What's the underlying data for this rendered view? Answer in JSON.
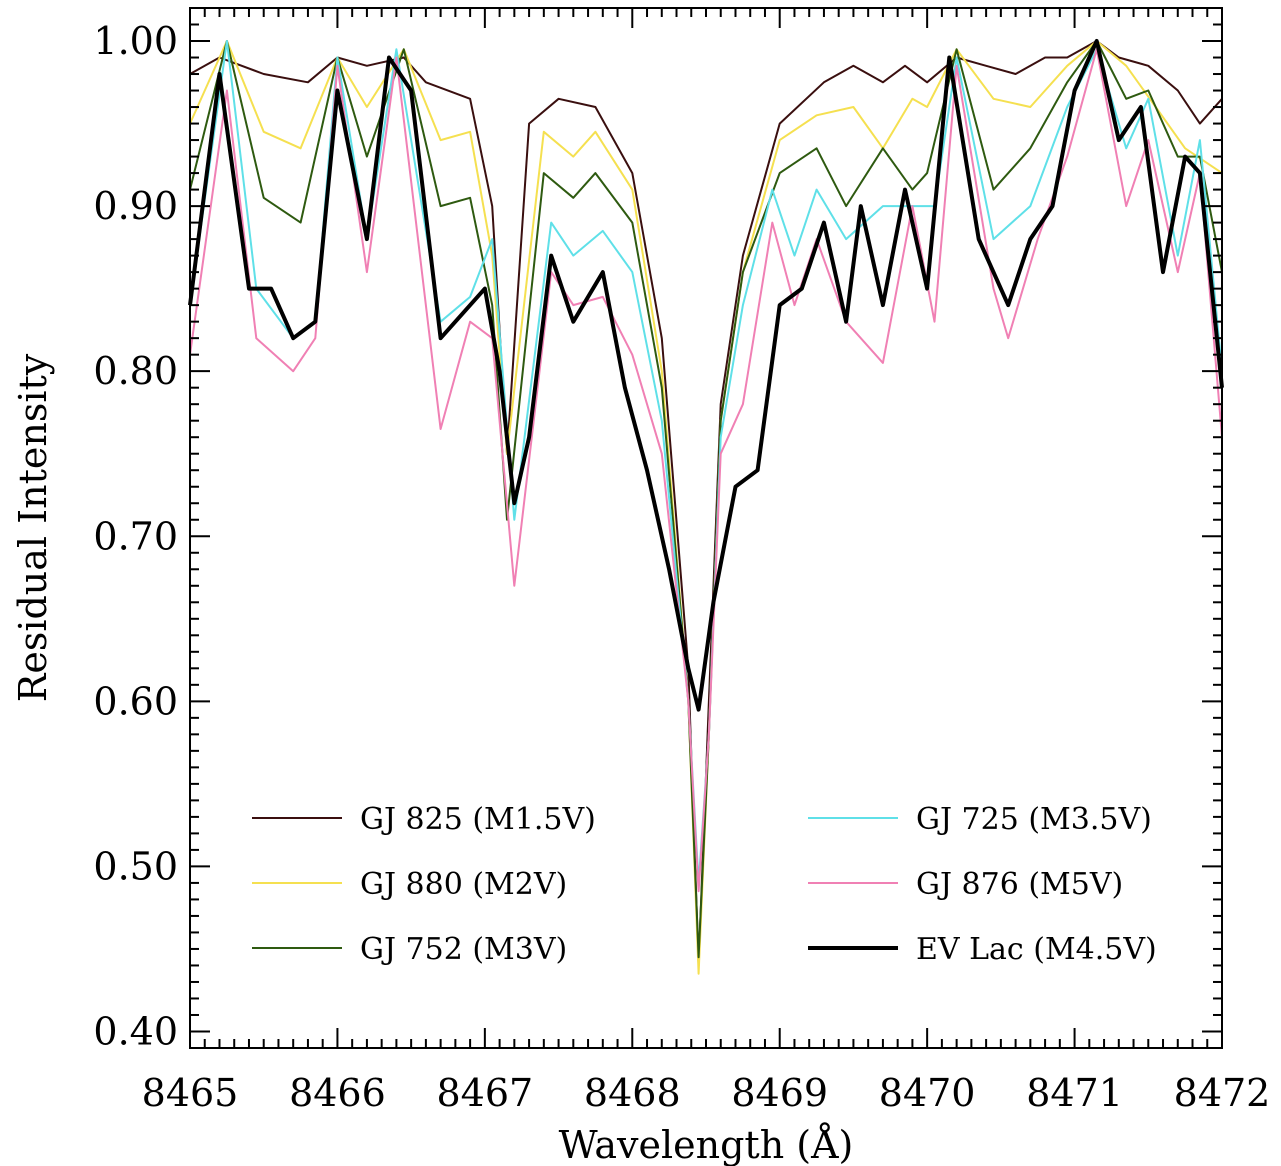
{
  "chart_data": {
    "type": "line",
    "title": "",
    "xlabel": "Wavelength  (Å)",
    "ylabel": "Residual Intensity",
    "xlim": [
      8465,
      8472
    ],
    "ylim": [
      0.39,
      1.02
    ],
    "xticks": [
      8465,
      8466,
      8467,
      8468,
      8469,
      8470,
      8471,
      8472
    ],
    "xtick_labels": [
      "8465",
      "8466",
      "8467",
      "8468",
      "8469",
      "8470",
      "8471",
      "8472"
    ],
    "yticks": [
      0.4,
      0.5,
      0.6,
      0.7,
      0.8,
      0.9,
      1.0
    ],
    "ytick_labels": [
      "0.40",
      "0.50",
      "0.60",
      "0.70",
      "0.80",
      "0.90",
      "1.00"
    ],
    "grid": false,
    "legend_position": "bottom",
    "series": [
      {
        "name": "GJ 825 (M1.5V)",
        "color": "#3a0f0f",
        "x": [
          8465.0,
          8465.2,
          8465.5,
          8465.8,
          8466.0,
          8466.2,
          8466.45,
          8466.6,
          8466.9,
          8467.05,
          8467.15,
          8467.3,
          8467.5,
          8467.75,
          8468.0,
          8468.2,
          8468.38,
          8468.45,
          8468.52,
          8468.6,
          8468.75,
          8469.0,
          8469.3,
          8469.5,
          8469.7,
          8469.85,
          8470.0,
          8470.2,
          8470.4,
          8470.6,
          8470.8,
          8470.95,
          8471.15,
          8471.3,
          8471.5,
          8471.7,
          8471.85,
          8472.0
        ],
        "y": [
          0.98,
          0.99,
          0.98,
          0.975,
          0.99,
          0.985,
          0.99,
          0.975,
          0.965,
          0.9,
          0.75,
          0.95,
          0.965,
          0.96,
          0.92,
          0.82,
          0.62,
          0.44,
          0.6,
          0.78,
          0.87,
          0.95,
          0.975,
          0.985,
          0.975,
          0.985,
          0.975,
          0.99,
          0.985,
          0.98,
          0.99,
          0.99,
          1.0,
          0.99,
          0.985,
          0.97,
          0.95,
          0.965
        ]
      },
      {
        "name": "GJ 880 (M2V)",
        "color": "#f5e050",
        "x": [
          8465.0,
          8465.25,
          8465.5,
          8465.75,
          8466.0,
          8466.2,
          8466.45,
          8466.7,
          8466.9,
          8467.05,
          8467.15,
          8467.4,
          8467.6,
          8467.75,
          8468.0,
          8468.2,
          8468.38,
          8468.45,
          8468.52,
          8468.6,
          8468.75,
          8469.0,
          8469.25,
          8469.5,
          8469.7,
          8469.9,
          8470.0,
          8470.2,
          8470.45,
          8470.7,
          8470.95,
          8471.15,
          8471.35,
          8471.55,
          8471.75,
          8472.0
        ],
        "y": [
          0.95,
          1.0,
          0.945,
          0.935,
          0.99,
          0.96,
          0.995,
          0.94,
          0.945,
          0.87,
          0.75,
          0.945,
          0.93,
          0.945,
          0.91,
          0.8,
          0.6,
          0.435,
          0.58,
          0.77,
          0.86,
          0.94,
          0.955,
          0.96,
          0.935,
          0.965,
          0.96,
          0.995,
          0.965,
          0.96,
          0.985,
          1.0,
          0.985,
          0.96,
          0.935,
          0.92
        ]
      },
      {
        "name": "GJ 752 (M3V)",
        "color": "#2e5a10",
        "x": [
          8465.0,
          8465.25,
          8465.5,
          8465.75,
          8466.0,
          8466.2,
          8466.45,
          8466.7,
          8466.9,
          8467.05,
          8467.15,
          8467.4,
          8467.6,
          8467.75,
          8468.0,
          8468.2,
          8468.38,
          8468.45,
          8468.52,
          8468.6,
          8468.75,
          8469.0,
          8469.25,
          8469.45,
          8469.7,
          8469.9,
          8470.0,
          8470.2,
          8470.45,
          8470.7,
          8470.95,
          8471.15,
          8471.35,
          8471.5,
          8471.7,
          8471.85,
          8472.0
        ],
        "y": [
          0.91,
          1.0,
          0.905,
          0.89,
          0.99,
          0.93,
          0.995,
          0.9,
          0.905,
          0.84,
          0.71,
          0.92,
          0.905,
          0.92,
          0.89,
          0.79,
          0.6,
          0.445,
          0.58,
          0.77,
          0.86,
          0.92,
          0.935,
          0.9,
          0.935,
          0.91,
          0.92,
          0.995,
          0.91,
          0.935,
          0.975,
          1.0,
          0.965,
          0.97,
          0.93,
          0.93,
          0.86
        ]
      },
      {
        "name": "GJ 725 (M3.5V)",
        "color": "#5fe0e8",
        "x": [
          8465.0,
          8465.25,
          8465.45,
          8465.7,
          8465.85,
          8466.0,
          8466.2,
          8466.4,
          8466.7,
          8466.9,
          8467.05,
          8467.2,
          8467.45,
          8467.6,
          8467.8,
          8468.0,
          8468.2,
          8468.38,
          8468.45,
          8468.52,
          8468.6,
          8468.75,
          8468.95,
          8469.1,
          8469.25,
          8469.45,
          8469.7,
          8469.9,
          8470.05,
          8470.2,
          8470.45,
          8470.7,
          8470.95,
          8471.15,
          8471.35,
          8471.5,
          8471.7,
          8471.85,
          8472.0
        ],
        "y": [
          0.84,
          1.0,
          0.85,
          0.82,
          0.83,
          0.99,
          0.88,
          0.995,
          0.83,
          0.845,
          0.88,
          0.71,
          0.89,
          0.87,
          0.885,
          0.86,
          0.77,
          0.6,
          0.49,
          0.58,
          0.76,
          0.84,
          0.91,
          0.87,
          0.91,
          0.88,
          0.9,
          0.9,
          0.9,
          0.99,
          0.88,
          0.9,
          0.96,
          0.995,
          0.935,
          0.965,
          0.87,
          0.94,
          0.8
        ]
      },
      {
        "name": "GJ 876 (M5V)",
        "color": "#f080b4",
        "x": [
          8465.0,
          8465.25,
          8465.45,
          8465.7,
          8465.85,
          8466.0,
          8466.2,
          8466.4,
          8466.7,
          8466.9,
          8467.05,
          8467.2,
          8467.45,
          8467.6,
          8467.8,
          8468.0,
          8468.2,
          8468.38,
          8468.45,
          8468.52,
          8468.6,
          8468.75,
          8468.95,
          8469.1,
          8469.25,
          8469.45,
          8469.7,
          8469.9,
          8470.05,
          8470.2,
          8470.45,
          8470.55,
          8470.75,
          8470.95,
          8471.15,
          8471.35,
          8471.5,
          8471.7,
          8471.85,
          8472.0
        ],
        "y": [
          0.81,
          0.97,
          0.82,
          0.8,
          0.82,
          0.985,
          0.86,
          0.99,
          0.765,
          0.83,
          0.82,
          0.67,
          0.86,
          0.84,
          0.845,
          0.81,
          0.75,
          0.6,
          0.485,
          0.58,
          0.75,
          0.78,
          0.89,
          0.84,
          0.88,
          0.83,
          0.805,
          0.9,
          0.83,
          0.985,
          0.85,
          0.82,
          0.88,
          0.93,
          0.995,
          0.9,
          0.94,
          0.86,
          0.92,
          0.76
        ]
      },
      {
        "name": "EV Lac (M4.5V)",
        "color": "#000000",
        "x": [
          8465.0,
          8465.2,
          8465.4,
          8465.55,
          8465.7,
          8465.85,
          8466.0,
          8466.2,
          8466.35,
          8466.5,
          8466.7,
          8466.85,
          8467.0,
          8467.1,
          8467.2,
          8467.3,
          8467.45,
          8467.6,
          8467.8,
          8467.95,
          8468.1,
          8468.25,
          8468.38,
          8468.45,
          8468.55,
          8468.7,
          8468.85,
          8469.0,
          8469.15,
          8469.3,
          8469.45,
          8469.55,
          8469.7,
          8469.85,
          8470.0,
          8470.15,
          8470.35,
          8470.55,
          8470.7,
          8470.85,
          8471.0,
          8471.15,
          8471.3,
          8471.45,
          8471.6,
          8471.75,
          8471.85,
          8472.0
        ],
        "y": [
          0.84,
          0.98,
          0.85,
          0.85,
          0.82,
          0.83,
          0.97,
          0.88,
          0.99,
          0.97,
          0.82,
          0.835,
          0.85,
          0.8,
          0.72,
          0.76,
          0.87,
          0.83,
          0.86,
          0.79,
          0.74,
          0.68,
          0.62,
          0.595,
          0.66,
          0.73,
          0.74,
          0.84,
          0.85,
          0.89,
          0.83,
          0.9,
          0.84,
          0.91,
          0.85,
          0.99,
          0.88,
          0.84,
          0.88,
          0.9,
          0.97,
          1.0,
          0.94,
          0.96,
          0.86,
          0.93,
          0.92,
          0.79
        ]
      }
    ]
  }
}
